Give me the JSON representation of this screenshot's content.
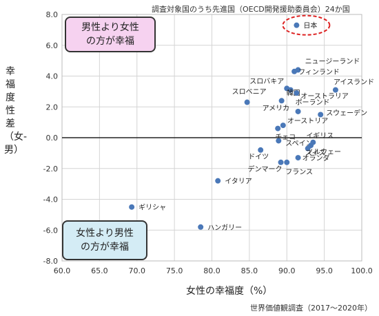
{
  "chart_data": {
    "type": "scatter",
    "subtitle": "調査対象国のうち先進国（OECD開発援助委員会）24か国",
    "xlabel": "女性の幸福度（%）",
    "ylabel": "幸福度性差（女-男）",
    "source": "世界価値観調査（2017〜2020年）",
    "xlim": [
      60.0,
      100.0
    ],
    "ylim": [
      -8.0,
      8.0
    ],
    "xticks": [
      "60.0",
      "65.0",
      "70.0",
      "75.0",
      "80.0",
      "85.0",
      "90.0",
      "95.0",
      "100.0"
    ],
    "yticks": [
      "8.0",
      "6.0",
      "4.0",
      "2.0",
      "0.0",
      "-2.0",
      "-4.0",
      "-6.0",
      "-8.0"
    ],
    "grid": true,
    "annotation_top": [
      "男性より女性",
      "の方が幸福"
    ],
    "annotation_bottom": [
      "女性より男性",
      "の方が幸福"
    ],
    "highlight": "日本",
    "points": [
      {
        "label": "日本",
        "x": 91.3,
        "y": 7.3
      },
      {
        "label": "ニュージーランド",
        "x": 91.5,
        "y": 4.4
      },
      {
        "label": "フィンランド",
        "x": 91.0,
        "y": 4.3
      },
      {
        "label": "スロバキア",
        "x": 90.0,
        "y": 3.2
      },
      {
        "label": "韓国",
        "x": 90.5,
        "y": 3.1
      },
      {
        "label": "アイスランド",
        "x": 96.5,
        "y": 3.1
      },
      {
        "label": "スロベニア",
        "x": 84.7,
        "y": 2.3
      },
      {
        "label": "オーストラリア",
        "x": 91.3,
        "y": 2.9
      },
      {
        "label": "アメリカ",
        "x": 89.3,
        "y": 2.4
      },
      {
        "label": "ポーランド",
        "x": 91.5,
        "y": 1.7
      },
      {
        "label": "スウェーデン",
        "x": 94.5,
        "y": 1.5
      },
      {
        "label": "オーストリア",
        "x": 89.5,
        "y": 0.8
      },
      {
        "label": "チェコ",
        "x": 88.8,
        "y": 0.6
      },
      {
        "label": "スペイン",
        "x": 88.9,
        "y": -0.2
      },
      {
        "label": "イギリス",
        "x": 93.5,
        "y": -0.3
      },
      {
        "label": "ノルウェー",
        "x": 93.2,
        "y": -0.5
      },
      {
        "label": "ドイツ",
        "x": 86.5,
        "y": -0.8
      },
      {
        "label": "スイス",
        "x": 92.8,
        "y": -0.7
      },
      {
        "label": "オランダ",
        "x": 91.5,
        "y": -1.3
      },
      {
        "label": "デンマーク",
        "x": 89.2,
        "y": -1.6
      },
      {
        "label": "フランス",
        "x": 90.0,
        "y": -1.6
      },
      {
        "label": "イタリア",
        "x": 80.8,
        "y": -2.8
      },
      {
        "label": "ギリシャ",
        "x": 69.3,
        "y": -4.5
      },
      {
        "label": "ハンガリー",
        "x": 78.5,
        "y": -5.8
      }
    ],
    "point_color": "#4a78b8"
  }
}
